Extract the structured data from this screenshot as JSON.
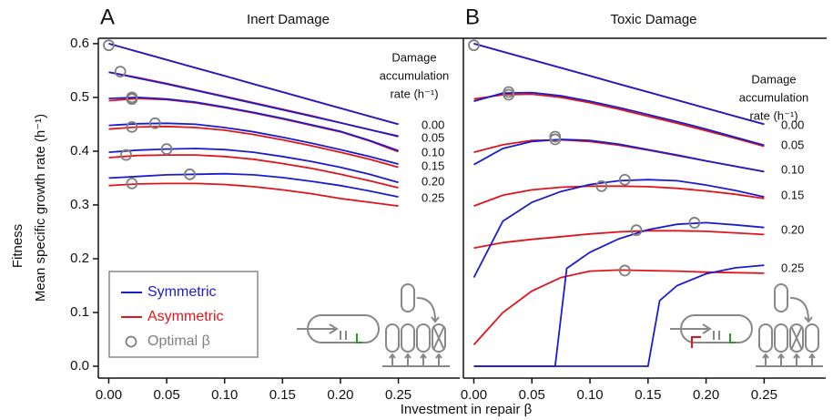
{
  "chart_data": {
    "type": "line",
    "xlabel": "Investment in repair β",
    "ylabel": [
      "Fitness",
      "Mean specific growth rate (h⁻¹)"
    ],
    "rate_title": [
      "Damage",
      "accumulation",
      "rate (h⁻¹)"
    ],
    "rate_labels": [
      "0.00",
      "0.05",
      "0.10",
      "0.15",
      "0.20",
      "0.25"
    ],
    "xlim": [
      -0.009,
      0.303
    ],
    "xticks": [
      {
        "value": 0,
        "label": "0.00"
      },
      {
        "value": 0.05,
        "label": "0.05"
      },
      {
        "value": 0.1,
        "label": "0.10"
      },
      {
        "value": 0.15,
        "label": "0.15"
      },
      {
        "value": 0.2,
        "label": "0.20"
      },
      {
        "value": 0.25,
        "label": "0.25"
      }
    ],
    "ylim": [
      -0.022,
      0.61
    ],
    "yticks": [
      {
        "value": 0,
        "label": "0.0"
      },
      0.1,
      0.2,
      0.3,
      0.4,
      0.5,
      0.6
    ],
    "series": [
      {
        "name": "Symmetric",
        "color": "#1c1ccf"
      },
      {
        "name": "Asymmetric",
        "color": "#e0141a"
      },
      {
        "name": "Optimal β",
        "color": "#808080"
      }
    ],
    "panels": [
      {
        "letter": "A",
        "title": "Inert Damage",
        "x": [
          0,
          0.025,
          0.05,
          0.075,
          0.1,
          0.125,
          0.15,
          0.175,
          0.2,
          0.225,
          0.25
        ],
        "series": [
          {
            "curves": [
              {
                "values": [
                  0.6,
                  0.585,
                  0.57,
                  0.555,
                  0.54,
                  0.525,
                  0.51,
                  0.495,
                  0.48,
                  0.465,
                  0.45
                ]
              },
              {
                "values": [
                  0.547,
                  0.536,
                  0.525,
                  0.513,
                  0.501,
                  0.489,
                  0.477,
                  0.465,
                  0.453,
                  0.44,
                  0.428
                ]
              },
              {
                "values": [
                  0.498,
                  0.5,
                  0.497,
                  0.491,
                  0.482,
                  0.472,
                  0.461,
                  0.449,
                  0.437,
                  0.42,
                  0.401
                ]
              },
              {
                "values": [
                  0.448,
                  0.451,
                  0.452,
                  0.45,
                  0.444,
                  0.436,
                  0.426,
                  0.415,
                  0.403,
                  0.39,
                  0.376
                ]
              },
              {
                "values": [
                  0.398,
                  0.402,
                  0.404,
                  0.405,
                  0.403,
                  0.398,
                  0.39,
                  0.381,
                  0.37,
                  0.357,
                  0.342
                ]
              },
              {
                "values": [
                  0.35,
                  0.353,
                  0.356,
                  0.357,
                  0.358,
                  0.356,
                  0.351,
                  0.344,
                  0.336,
                  0.326,
                  0.315
                ]
              }
            ]
          },
          {
            "curves": [
              {
                "values": [
                  0.6,
                  0.585,
                  0.57,
                  0.555,
                  0.54,
                  0.525,
                  0.51,
                  0.495,
                  0.48,
                  0.465,
                  0.45
                ]
              },
              {
                "values": [
                  0.547,
                  0.537,
                  0.526,
                  0.514,
                  0.502,
                  0.49,
                  0.478,
                  0.466,
                  0.453,
                  0.44,
                  0.427
                ]
              },
              {
                "values": [
                  0.494,
                  0.498,
                  0.496,
                  0.49,
                  0.481,
                  0.471,
                  0.46,
                  0.448,
                  0.436,
                  0.419,
                  0.399
                ]
              },
              {
                "values": [
                  0.441,
                  0.445,
                  0.446,
                  0.444,
                  0.439,
                  0.431,
                  0.421,
                  0.41,
                  0.398,
                  0.385,
                  0.37
                ]
              },
              {
                "values": [
                  0.388,
                  0.392,
                  0.393,
                  0.393,
                  0.39,
                  0.385,
                  0.377,
                  0.368,
                  0.357,
                  0.345,
                  0.332
                ]
              },
              {
                "values": [
                  0.336,
                  0.339,
                  0.34,
                  0.34,
                  0.338,
                  0.334,
                  0.328,
                  0.321,
                  0.312,
                  0.305,
                  0.298
                ]
              }
            ]
          },
          {
            "x": [
              0,
              0.01,
              0.02,
              0.02,
              0.02,
              0.04,
              0.015,
              0.05,
              0.02,
              0.07
            ],
            "values": [
              0.597,
              0.548,
              0.5,
              0.497,
              0.445,
              0.452,
              0.393,
              0.404,
              0.34,
              0.357
            ]
          }
        ]
      },
      {
        "letter": "B",
        "title": "Toxic Damage",
        "x": [
          0,
          0.025,
          0.05,
          0.075,
          0.1,
          0.125,
          0.15,
          0.175,
          0.2,
          0.225,
          0.25
        ],
        "series": [
          {
            "curves": [
              {
                "values": [
                  0.6,
                  0.585,
                  0.57,
                  0.555,
                  0.54,
                  0.525,
                  0.51,
                  0.495,
                  0.48,
                  0.465,
                  0.45
                ]
              },
              {
                "values": [
                  0.493,
                  0.508,
                  0.509,
                  0.503,
                  0.493,
                  0.481,
                  0.468,
                  0.455,
                  0.441,
                  0.426,
                  0.411
                ]
              },
              {
                "values": [
                  0.375,
                  0.405,
                  0.418,
                  0.422,
                  0.42,
                  0.413,
                  0.403,
                  0.393,
                  0.382,
                  0.372,
                  0.362
                ]
              },
              {
                "values": [
                  0.165,
                  0.27,
                  0.305,
                  0.325,
                  0.338,
                  0.345,
                  0.347,
                  0.345,
                  0.337,
                  0.327,
                  0.315
                ]
              },
              {
                "x": [
                  0,
                  0.025,
                  0.05,
                  0.07,
                  0.08,
                  0.1,
                  0.125,
                  0.15,
                  0.175,
                  0.2,
                  0.225,
                  0.25
                ],
                "values": [
                  0,
                  0,
                  0,
                  0,
                  0.182,
                  0.212,
                  0.237,
                  0.254,
                  0.264,
                  0.267,
                  0.263,
                  0.258
                ]
              },
              {
                "x": [
                  0,
                  0.05,
                  0.1,
                  0.15,
                  0.16,
                  0.175,
                  0.2,
                  0.225,
                  0.25
                ],
                "values": [
                  0,
                  0,
                  0,
                  0,
                  0.122,
                  0.15,
                  0.172,
                  0.183,
                  0.188
                ]
              }
            ]
          },
          {
            "curves": [
              {
                "values": [
                  0.6,
                  0.585,
                  0.57,
                  0.555,
                  0.54,
                  0.525,
                  0.51,
                  0.495,
                  0.48,
                  0.465,
                  0.45
                ]
              },
              {
                "values": [
                  0.497,
                  0.505,
                  0.506,
                  0.5,
                  0.49,
                  0.478,
                  0.465,
                  0.452,
                  0.438,
                  0.424,
                  0.409
                ]
              },
              {
                "values": [
                  0.398,
                  0.412,
                  0.42,
                  0.421,
                  0.418,
                  0.411,
                  0.402,
                  0.392,
                  0.382,
                  0.372,
                  0.362
                ]
              },
              {
                "values": [
                  0.298,
                  0.318,
                  0.328,
                  0.333,
                  0.335,
                  0.335,
                  0.334,
                  0.331,
                  0.326,
                  0.32,
                  0.312
                ]
              },
              {
                "values": [
                  0.22,
                  0.23,
                  0.236,
                  0.241,
                  0.246,
                  0.25,
                  0.252,
                  0.252,
                  0.251,
                  0.248,
                  0.245
                ]
              },
              {
                "values": [
                  0.04,
                  0.1,
                  0.14,
                  0.165,
                  0.177,
                  0.179,
                  0.178,
                  0.177,
                  0.175,
                  0.174,
                  0.173
                ]
              }
            ]
          },
          {
            "x": [
              0,
              0.03,
              0.03,
              0.07,
              0.07,
              0.13,
              0.11,
              0.19,
              0.14,
              0.13
            ],
            "values": [
              0.597,
              0.51,
              0.505,
              0.427,
              0.422,
              0.347,
              0.335,
              0.267,
              0.253,
              0.178
            ]
          }
        ]
      }
    ]
  }
}
